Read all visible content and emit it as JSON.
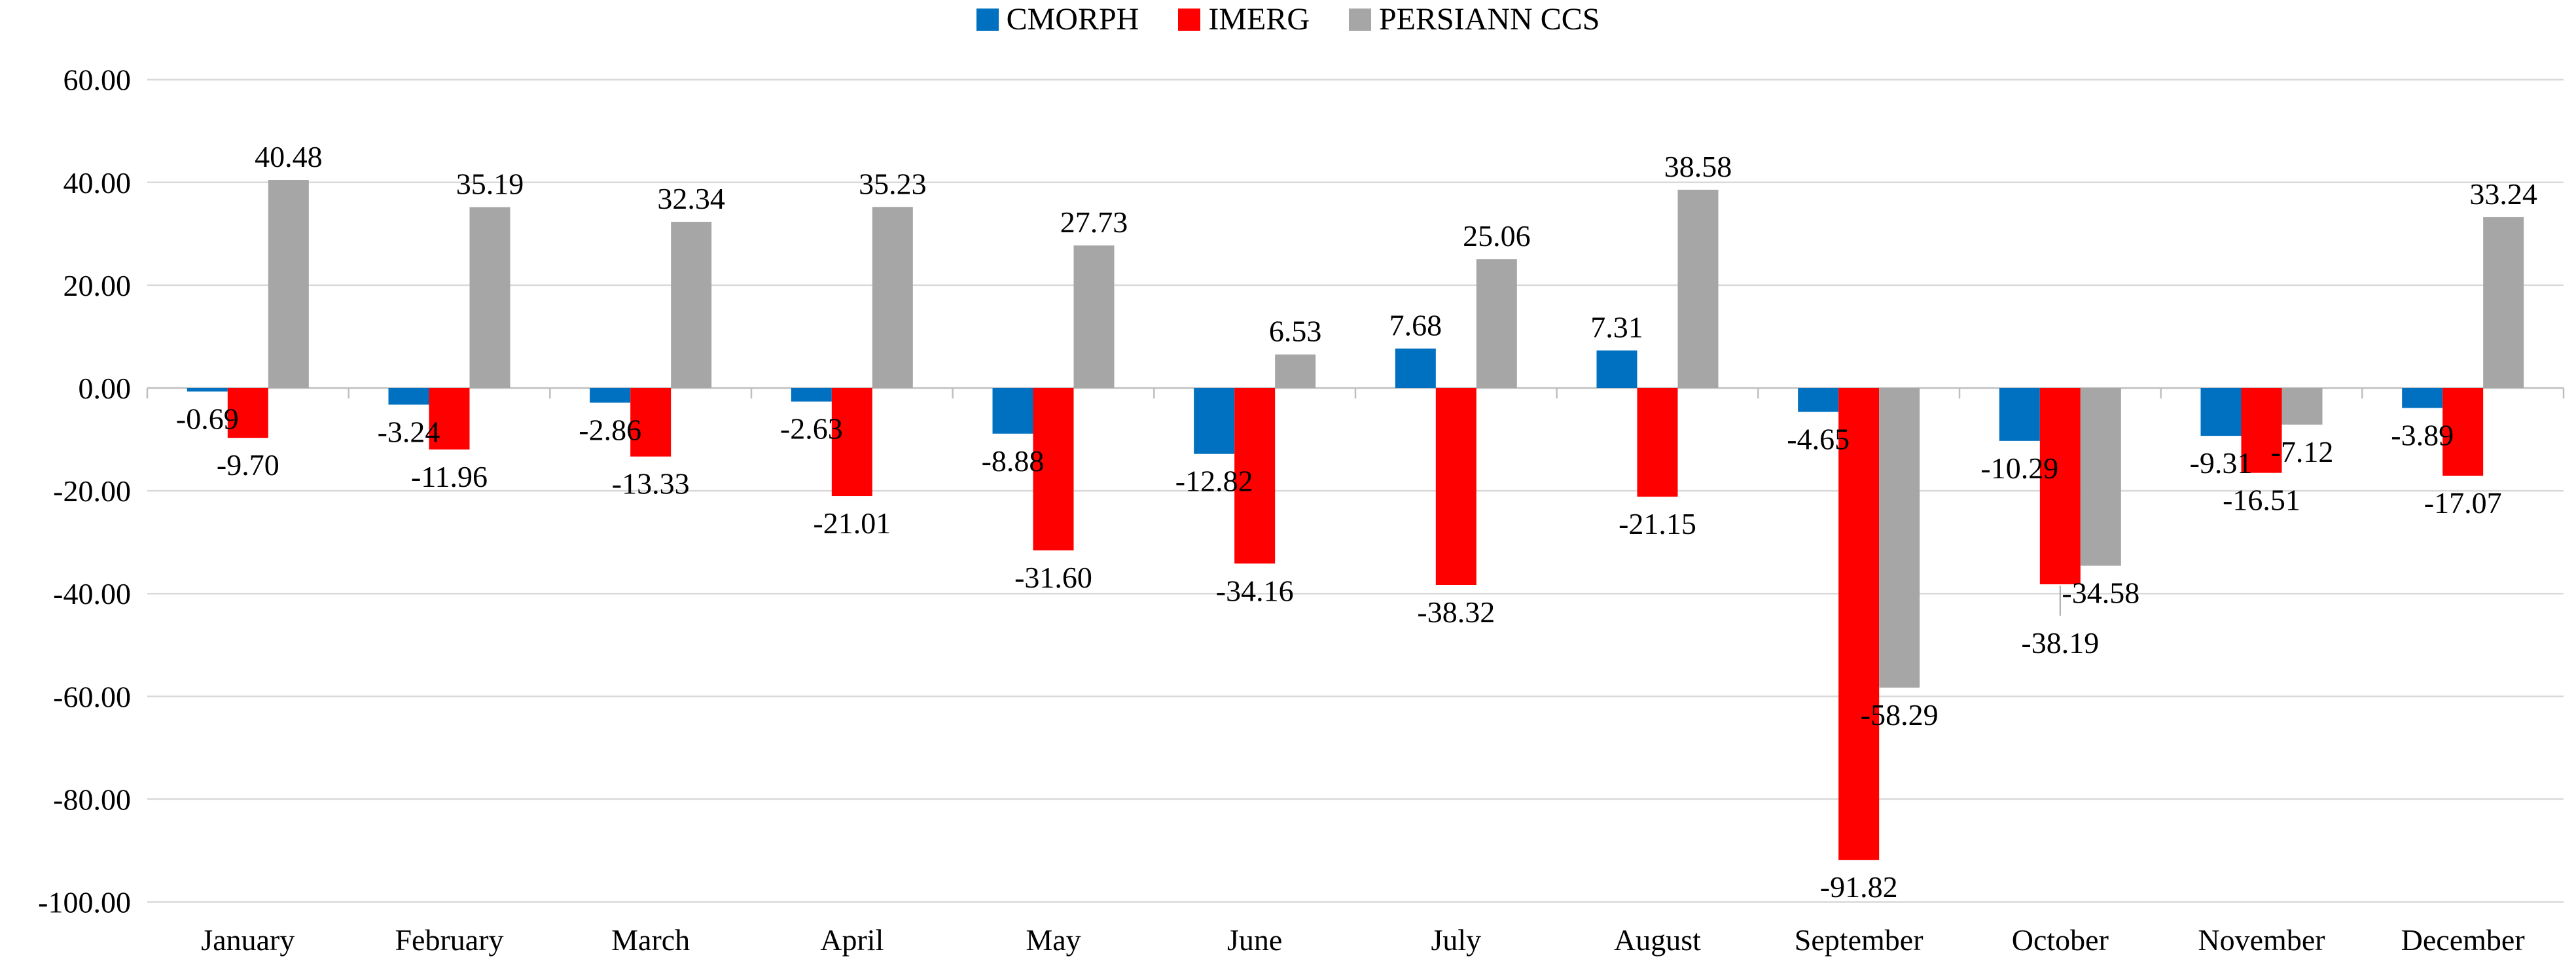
{
  "chart_data": {
    "type": "bar",
    "title": "",
    "xlabel": "",
    "ylabel": "",
    "categories": [
      "January",
      "February",
      "March",
      "April",
      "May",
      "June",
      "July",
      "August",
      "September",
      "October",
      "November",
      "December"
    ],
    "series": [
      {
        "name": "CMORPH",
        "color": "#0070C0",
        "values": [
          -0.69,
          -3.24,
          -2.86,
          -2.63,
          -8.88,
          -12.82,
          7.68,
          7.31,
          -4.65,
          -10.29,
          -9.31,
          -3.89
        ]
      },
      {
        "name": "IMERG",
        "color": "#FF0000",
        "values": [
          -9.7,
          -11.96,
          -13.33,
          -21.01,
          -31.6,
          -34.16,
          -38.32,
          -21.15,
          -91.82,
          -38.19,
          -16.51,
          -17.07
        ]
      },
      {
        "name": "PERSIANN CCS",
        "color": "#A6A6A6",
        "values": [
          40.48,
          35.19,
          32.34,
          35.23,
          27.73,
          6.53,
          25.06,
          38.58,
          -58.29,
          -34.58,
          -7.12,
          33.24
        ]
      }
    ],
    "y_ticks": [
      {
        "value": 60,
        "label": "60.00"
      },
      {
        "value": 40,
        "label": "40.00"
      },
      {
        "value": 20,
        "label": "20.00"
      },
      {
        "value": 0,
        "label": "0.00"
      },
      {
        "value": -20,
        "label": "-20.00"
      },
      {
        "value": -40,
        "label": "-40.00"
      },
      {
        "value": -60,
        "label": "-60.00"
      },
      {
        "value": -80,
        "label": "-80.00"
      },
      {
        "value": -100,
        "label": "-100.00"
      }
    ],
    "ylim": [
      -100,
      60
    ],
    "ytick_step": 20,
    "grid": true,
    "legend_position": "top",
    "data_labels": true,
    "label_decimals": 2,
    "label_adjustments": [
      {
        "series": 1,
        "category_index": 9,
        "dy": 48,
        "leader": true
      }
    ],
    "colors": {
      "grid": "#D9D9D9",
      "axis": "#BFBFBF",
      "leader": "#A6A6A6",
      "text": "#000000",
      "background": "#FFFFFF"
    }
  }
}
